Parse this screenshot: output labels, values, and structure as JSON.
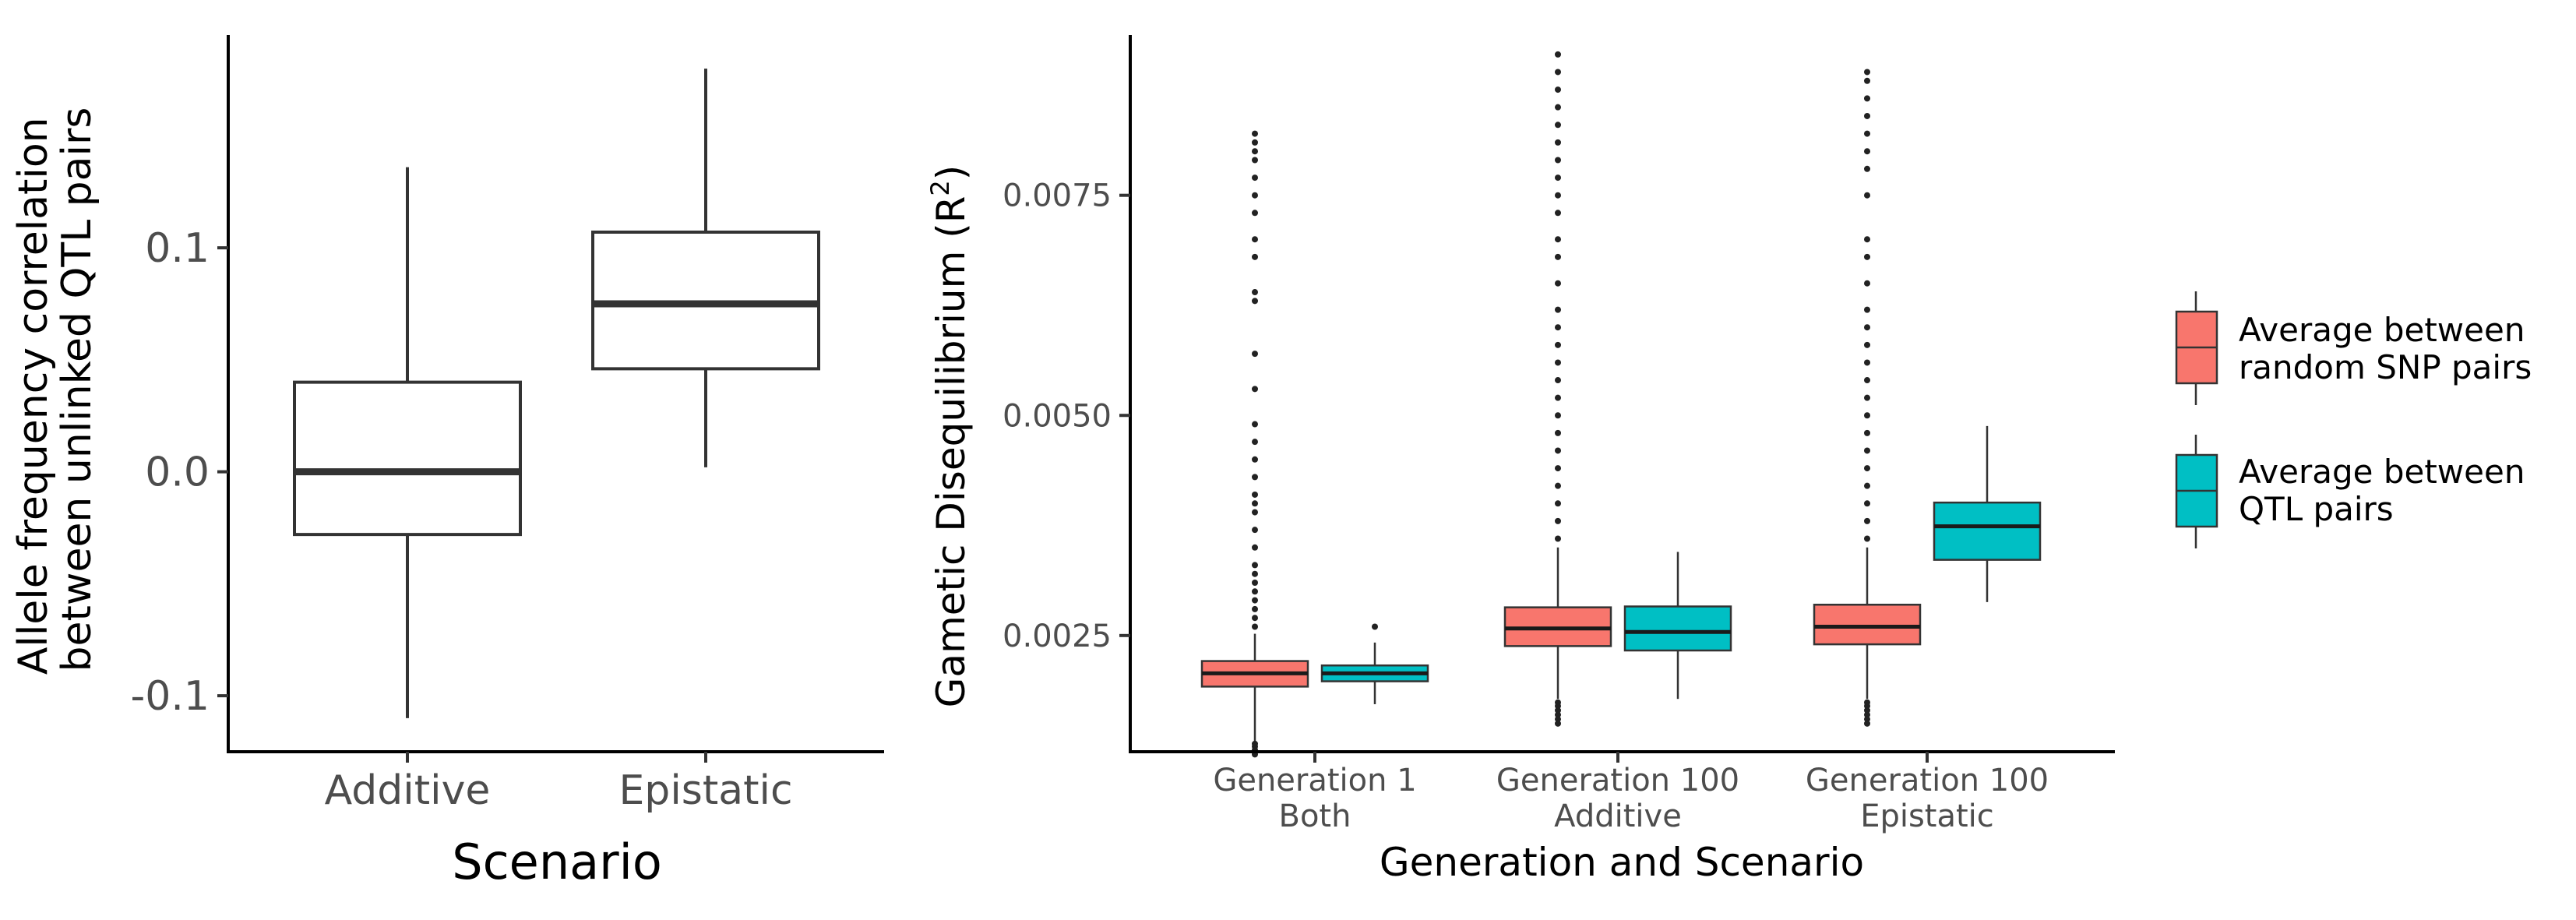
{
  "chart_data": [
    {
      "type": "boxplot",
      "xlabel": "Scenario",
      "ylabel_lines": [
        "Allele frequency correlation",
        "between unlinked QTL pairs"
      ],
      "ylim": [
        -0.125,
        0.195
      ],
      "yticks": [
        -0.1,
        0.0,
        0.1
      ],
      "ytick_labels": [
        "-0.1",
        "0.0",
        "0.1"
      ],
      "grid": false,
      "categories": [
        "Additive",
        "Epistatic"
      ],
      "boxes": [
        {
          "category": "Additive",
          "min": -0.11,
          "q1": -0.028,
          "median": 0.0,
          "q3": 0.04,
          "max": 0.136
        },
        {
          "category": "Epistatic",
          "min": 0.002,
          "q1": 0.046,
          "median": 0.075,
          "q3": 0.107,
          "max": 0.18
        }
      ]
    },
    {
      "type": "boxplot",
      "xlabel": "Generation and Scenario",
      "ylabel": "Gametic Disequilibrium (R",
      "ylabel_sup": "2",
      "ylabel_suffix": ")",
      "ylim": [
        0.00118,
        0.00932
      ],
      "yticks": [
        0.0025,
        0.005,
        0.0075
      ],
      "ytick_labels": [
        "0.0025",
        "0.0050",
        "0.0075"
      ],
      "grid": false,
      "groups": [
        {
          "label_line1": "Generation 1",
          "label_line2": "Both"
        },
        {
          "label_line1": "Generation 100",
          "label_line2": "Additive"
        },
        {
          "label_line1": "Generation 100",
          "label_line2": "Epistatic"
        }
      ],
      "legend": {
        "placement": "right",
        "entries": [
          {
            "line1": "Average between",
            "line2": "random SNP pairs",
            "color": "#F8766D"
          },
          {
            "line1": "Average between",
            "line2": "QTL pairs",
            "color": "#00BFC4"
          }
        ]
      },
      "boxes": [
        {
          "group": 0,
          "series": 0,
          "color": "#F8766D",
          "min": 0.00128,
          "q1": 0.00192,
          "median": 0.00207,
          "q3": 0.00221,
          "max": 0.00252,
          "outliers_low": [
            0.00115,
            0.0012,
            0.00124,
            0.00127
          ],
          "outliers_high": [
            0.0026,
            0.0027,
            0.0028,
            0.0029,
            0.003,
            0.0031,
            0.0032,
            0.0033,
            0.0035,
            0.0037,
            0.0039,
            0.004,
            0.0041,
            0.0043,
            0.0045,
            0.0047,
            0.0049,
            0.0053,
            0.0057,
            0.0063,
            0.0064,
            0.0068,
            0.007,
            0.0073,
            0.0075,
            0.0077,
            0.0079,
            0.008,
            0.0081,
            0.0082
          ]
        },
        {
          "group": 0,
          "series": 1,
          "color": "#00BFC4",
          "min": 0.00172,
          "q1": 0.00198,
          "median": 0.00207,
          "q3": 0.00216,
          "max": 0.00242,
          "outliers_low": [],
          "outliers_high": [
            0.0026
          ]
        },
        {
          "group": 1,
          "series": 0,
          "color": "#F8766D",
          "min": 0.00178,
          "q1": 0.00238,
          "median": 0.00258,
          "q3": 0.00282,
          "max": 0.0035,
          "outliers_low": [
            0.0015,
            0.00155,
            0.0016,
            0.00165,
            0.0017,
            0.00174
          ],
          "outliers_high": [
            0.0036,
            0.0038,
            0.004,
            0.0042,
            0.0044,
            0.0046,
            0.0048,
            0.005,
            0.0052,
            0.0054,
            0.0056,
            0.0058,
            0.006,
            0.0062,
            0.0065,
            0.0068,
            0.007,
            0.0073,
            0.0075,
            0.0077,
            0.0079,
            0.0081,
            0.0083,
            0.0085,
            0.0087,
            0.0089,
            0.0091
          ]
        },
        {
          "group": 1,
          "series": 1,
          "color": "#00BFC4",
          "min": 0.00178,
          "q1": 0.00233,
          "median": 0.00254,
          "q3": 0.00283,
          "max": 0.00345,
          "outliers_low": [],
          "outliers_high": []
        },
        {
          "group": 2,
          "series": 0,
          "color": "#F8766D",
          "min": 0.00178,
          "q1": 0.0024,
          "median": 0.0026,
          "q3": 0.00285,
          "max": 0.0035,
          "outliers_low": [
            0.0015,
            0.00155,
            0.0016,
            0.00165,
            0.0017,
            0.00174
          ],
          "outliers_high": [
            0.0036,
            0.0038,
            0.004,
            0.0042,
            0.0044,
            0.0046,
            0.0048,
            0.005,
            0.0052,
            0.0054,
            0.0056,
            0.0058,
            0.006,
            0.0062,
            0.0065,
            0.0068,
            0.007,
            0.0075,
            0.0078,
            0.008,
            0.0082,
            0.0084,
            0.0086,
            0.0088,
            0.0089
          ]
        },
        {
          "group": 2,
          "series": 1,
          "color": "#00BFC4",
          "min": 0.00288,
          "q1": 0.00336,
          "median": 0.00374,
          "q3": 0.00401,
          "max": 0.00488,
          "outliers_low": [],
          "outliers_high": []
        }
      ]
    }
  ]
}
